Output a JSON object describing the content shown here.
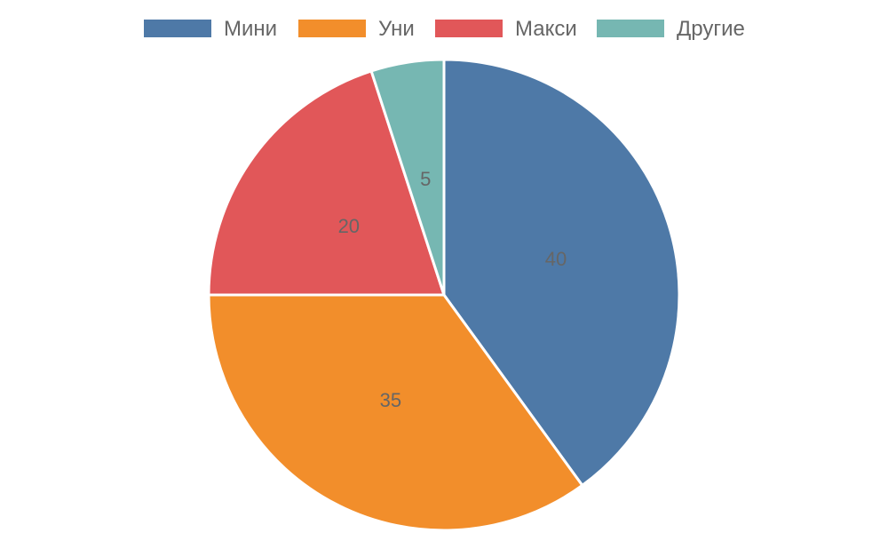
{
  "chart_data": {
    "type": "pie",
    "categories": [
      "Мини",
      "Уни",
      "Макси",
      "Другие"
    ],
    "values": [
      40,
      35,
      20,
      5
    ],
    "colors": [
      "#4e79a7",
      "#f28e2b",
      "#e15759",
      "#76b7b2"
    ],
    "legend_position": "top",
    "data_labels": [
      "40",
      "35",
      "20",
      "5"
    ]
  }
}
